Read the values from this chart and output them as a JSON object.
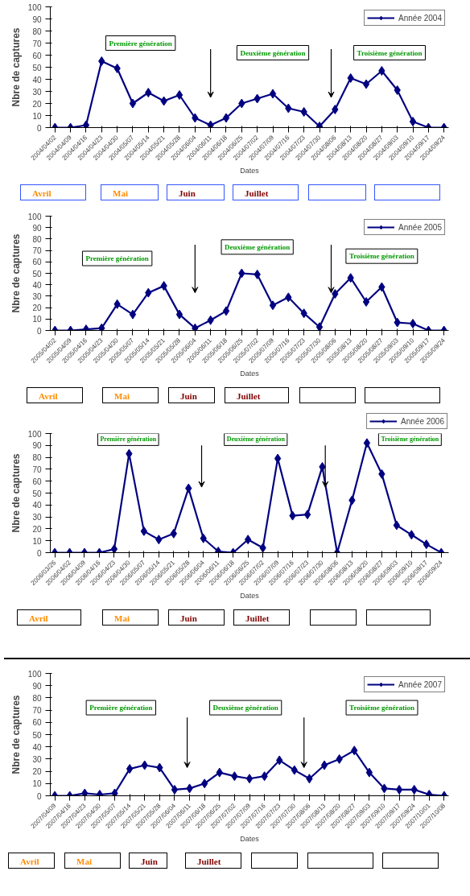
{
  "chart_data": [
    {
      "type": "line",
      "xlabel": "Dates",
      "ylabel": "Nbre de captures",
      "ylim": [
        0,
        100
      ],
      "yticks": [
        0,
        10,
        20,
        30,
        40,
        50,
        60,
        70,
        80,
        90,
        100
      ],
      "legend": "top right",
      "marker": "diamond",
      "grid": false,
      "categories": [
        "2004/04/02",
        "2004/04/09",
        "2004/04/16",
        "2004/04/23",
        "2004/04/30",
        "2004/05/07",
        "2004/05/14",
        "2004/05/21",
        "2004/05/28",
        "2004/06/04",
        "2004/06/11",
        "2004/06/18",
        "2004/06/25",
        "2004/07/02",
        "2004/07/09",
        "2004/07/16",
        "2004/07/23",
        "2004/07/30",
        "2004/08/06",
        "2004/08/13",
        "2004/08/20",
        "2004/08/27",
        "2004/09/03",
        "2004/09/10",
        "2004/09/17",
        "2004/09/24"
      ],
      "series": [
        {
          "name": "Année 2004",
          "color": "#000080",
          "values": [
            0,
            0,
            2,
            55,
            49,
            20,
            29,
            22,
            27,
            8,
            2,
            8,
            20,
            24,
            28,
            16,
            13,
            1,
            15,
            41,
            36,
            47,
            31,
            5,
            0,
            0
          ]
        }
      ],
      "annotations": [
        "Première génération",
        "Deuxième génération",
        "Troisième génération",
        "Avril",
        "Mai",
        "Juin",
        "Juillet"
      ]
    },
    {
      "type": "line",
      "xlabel": "Dates",
      "ylabel": "Nbre de captures",
      "ylim": [
        0,
        100
      ],
      "yticks": [
        0,
        10,
        20,
        30,
        40,
        50,
        60,
        70,
        80,
        90,
        100
      ],
      "legend": "top right",
      "marker": "diamond",
      "grid": false,
      "categories": [
        "2005/04/02",
        "2005/04/09",
        "2005/04/16",
        "2005/04/23",
        "2005/04/30",
        "2005/05/07",
        "2005/05/14",
        "2005/05/21",
        "2005/05/28",
        "2005/06/04",
        "2005/06/11",
        "2005/06/18",
        "2005/06/25",
        "2005/07/02",
        "2005/07/09",
        "2005/07/16",
        "2005/07/23",
        "2005/07/30",
        "2005/08/06",
        "2005/08/13",
        "2005/08/20",
        "2005/08/27",
        "2005/09/03",
        "2005/09/10",
        "2005/09/17",
        "2005/09/24"
      ],
      "series": [
        {
          "name": "Année 2005",
          "color": "#000080",
          "values": [
            0,
            0,
            1,
            2,
            23,
            14,
            33,
            39,
            14,
            2,
            9,
            17,
            50,
            49,
            22,
            29,
            15,
            3,
            32,
            46,
            25,
            38,
            7,
            6,
            0,
            0
          ]
        }
      ],
      "annotations": [
        "Première génération",
        "Deuxième génération",
        "Troisième génération",
        "Avril",
        "Mai",
        "Juin",
        "Juillet"
      ]
    },
    {
      "type": "line",
      "xlabel": "Dates",
      "ylabel": "Nbre de captures",
      "ylim": [
        0,
        100
      ],
      "yticks": [
        0,
        10,
        20,
        30,
        40,
        50,
        60,
        70,
        80,
        90,
        100
      ],
      "legend": "top right",
      "marker": "diamond",
      "grid": false,
      "categories": [
        "2006/03/26",
        "2006/04/02",
        "2006/04/09",
        "2006/04/16",
        "2006/04/23",
        "2006/04/30",
        "2006/05/07",
        "2006/05/14",
        "2006/05/21",
        "2006/05/28",
        "2006/06/04",
        "2006/06/11",
        "2006/06/18",
        "2006/06/25",
        "2006/07/02",
        "2006/07/09",
        "2006/07/16",
        "2006/07/23",
        "2006/07/30",
        "2006/08/06",
        "2006/08/13",
        "2006/08/20",
        "2006/08/27",
        "2006/09/03",
        "2006/09/10",
        "2006/09/17",
        "2006/09/24"
      ],
      "series": [
        {
          "name": "Année 2006",
          "color": "#000080",
          "values": [
            0,
            0,
            0,
            0,
            3,
            83,
            18,
            11,
            16,
            54,
            12,
            1,
            0,
            11,
            4,
            79,
            31,
            32,
            72,
            0,
            44,
            92,
            66,
            23,
            15,
            7,
            0
          ]
        }
      ],
      "annotations": [
        "Première génération",
        "Deuxième génération",
        "Troisième génération",
        "Avril",
        "Mai",
        "Juin",
        "Juillet"
      ]
    },
    {
      "type": "line",
      "xlabel": "Dates",
      "ylabel": "Nbre de captures",
      "ylim": [
        0,
        100
      ],
      "yticks": [
        0,
        10,
        20,
        30,
        40,
        50,
        60,
        70,
        80,
        90,
        100
      ],
      "legend": "top right",
      "marker": "diamond",
      "grid": false,
      "categories": [
        "2007/04/09",
        "2007/04/16",
        "2007/04/23",
        "2007/04/30",
        "2007/05/07",
        "2007/05/14",
        "2007/05/21",
        "2007/05/28",
        "2007/06/04",
        "2007/06/11",
        "2007/06/18",
        "2007/06/25",
        "2007/07/02",
        "2007/07/09",
        "2007/07/16",
        "2007/07/23",
        "2007/07/30",
        "2007/08/06",
        "2007/08/13",
        "2007/08/20",
        "2007/08/27",
        "2007/09/03",
        "2007/09/10",
        "2007/09/17",
        "2007/09/24",
        "2007/10/01",
        "2007/10/08"
      ],
      "series": [
        {
          "name": "Année 2007",
          "color": "#000080",
          "values": [
            0,
            0,
            2,
            1,
            2,
            22,
            25,
            23,
            5,
            6,
            10,
            19,
            16,
            14,
            16,
            29,
            21,
            14,
            25,
            30,
            37,
            19,
            6,
            5,
            5,
            1,
            0
          ]
        }
      ],
      "annotations": [
        "Première génération",
        "Deuxième génération",
        "Troisième génération",
        "Avril",
        "Mai",
        "Juin",
        "Juillet"
      ]
    }
  ]
}
